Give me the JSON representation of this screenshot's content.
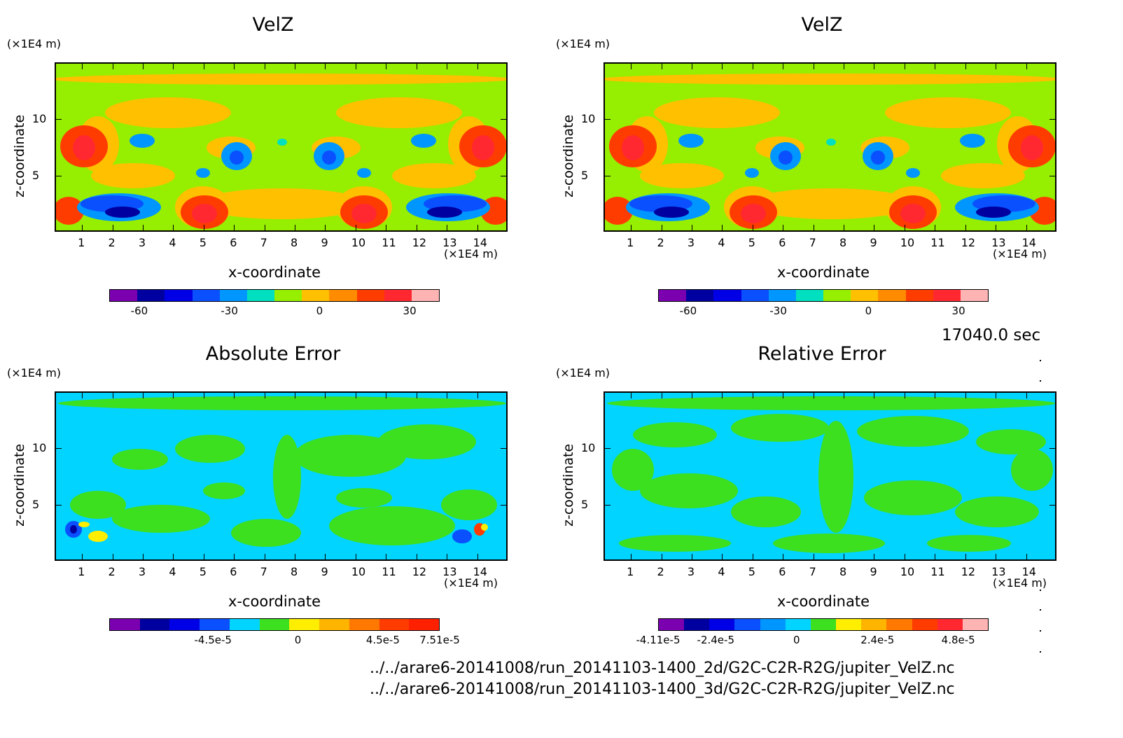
{
  "time_label": "17040.0 sec",
  "files": [
    "../../arare6-20141008/run_20141103-1400_2d/G2C-C2R-R2G/jupiter_VelZ.nc",
    "../../arare6-20141008/run_20141103-1400_3d/G2C-C2R-R2G/jupiter_VelZ.nc"
  ],
  "chart_data": [
    {
      "type": "heatmap",
      "title": "VelZ",
      "xlabel": "x-coordinate",
      "ylabel": "z-coordinate",
      "x_unit": "(×1E4 m)",
      "y_unit": "(×1E4 m)",
      "xlim": [
        0.1,
        15.0
      ],
      "ylim": [
        0.1,
        15.0
      ],
      "x_ticks": [
        1,
        2,
        3,
        4,
        5,
        6,
        7,
        8,
        9,
        10,
        11,
        12,
        13,
        14
      ],
      "y_ticks": [
        5,
        10
      ],
      "colorbar": {
        "colors": [
          "#7a00b0",
          "#0000a0",
          "#0000e6",
          "#0a50ff",
          "#0096ff",
          "#00e0c0",
          "#96ee00",
          "#ffc000",
          "#ff8c00",
          "#ff3c00",
          "#ff2830",
          "#ffb4b4"
        ],
        "tick_labels": [
          "-60",
          "-30",
          "0",
          "30"
        ],
        "tick_values": [
          -60,
          -30,
          0,
          30
        ],
        "range": [
          -70,
          40
        ]
      },
      "colors": {
        "background": "#96ee00",
        "positive": "#ffc000",
        "negative": "#0096ff"
      }
    },
    {
      "type": "heatmap",
      "title": "VelZ",
      "xlabel": "x-coordinate",
      "ylabel": "z-coordinate",
      "x_unit": "(×1E4 m)",
      "y_unit": "(×1E4 m)",
      "xlim": [
        0.1,
        15.0
      ],
      "ylim": [
        0.1,
        15.0
      ],
      "x_ticks": [
        1,
        2,
        3,
        4,
        5,
        6,
        7,
        8,
        9,
        10,
        11,
        12,
        13,
        14
      ],
      "y_ticks": [
        5,
        10
      ],
      "colorbar": {
        "colors": [
          "#7a00b0",
          "#0000a0",
          "#0000e6",
          "#0a50ff",
          "#0096ff",
          "#00e0c0",
          "#96ee00",
          "#ffc000",
          "#ff8c00",
          "#ff3c00",
          "#ff2830",
          "#ffb4b4"
        ],
        "tick_labels": [
          "-60",
          "-30",
          "0",
          "30"
        ],
        "tick_values": [
          -60,
          -30,
          0,
          30
        ],
        "range": [
          -70,
          40
        ]
      },
      "colors": {
        "background": "#96ee00",
        "positive": "#ffc000",
        "negative": "#0096ff"
      }
    },
    {
      "type": "heatmap",
      "title": "Absolute Error",
      "xlabel": "x-coordinate",
      "ylabel": "z-coordinate",
      "x_unit": "(×1E4 m)",
      "y_unit": "(×1E4 m)",
      "xlim": [
        0.1,
        15.0
      ],
      "ylim": [
        0.1,
        15.0
      ],
      "x_ticks": [
        1,
        2,
        3,
        4,
        5,
        6,
        7,
        8,
        9,
        10,
        11,
        12,
        13,
        14
      ],
      "y_ticks": [
        5,
        10
      ],
      "colorbar": {
        "colors": [
          "#7a00b0",
          "#0000a0",
          "#0000e6",
          "#0a50ff",
          "#00d4ff",
          "#3ce01e",
          "#ffee00",
          "#ffb400",
          "#ff7800",
          "#ff3c00",
          "#ff2000"
        ],
        "tick_labels": [
          "-4.5e-5",
          "0",
          "4.5e-5",
          "7.51e-5"
        ],
        "tick_values": [
          -4.5e-05,
          0,
          4.5e-05,
          7.51e-05
        ],
        "range": [
          -0.0001,
          7.51e-05
        ]
      },
      "colors": {
        "background": "#00d4ff",
        "positive": "#3ce01e",
        "negative": "#0a50ff"
      }
    },
    {
      "type": "heatmap",
      "title": "Relative Error",
      "xlabel": "x-coordinate",
      "ylabel": "z-coordinate",
      "x_unit": "(×1E4 m)",
      "y_unit": "(×1E4 m)",
      "xlim": [
        0.1,
        15.0
      ],
      "ylim": [
        0.1,
        15.0
      ],
      "x_ticks": [
        1,
        2,
        3,
        4,
        5,
        6,
        7,
        8,
        9,
        10,
        11,
        12,
        13,
        14
      ],
      "y_ticks": [
        5,
        10
      ],
      "colorbar": {
        "colors": [
          "#7a00b0",
          "#0000a0",
          "#0000e6",
          "#0a50ff",
          "#0096ff",
          "#00d4ff",
          "#3ce01e",
          "#ffee00",
          "#ffb400",
          "#ff7800",
          "#ff3c00",
          "#ff2830",
          "#ffb4b4"
        ],
        "tick_labels": [
          "-4.11e-5",
          "-2.4e-5",
          "0",
          "2.4e-5",
          "4.8e-5"
        ],
        "tick_values": [
          -4.11e-05,
          -2.4e-05,
          0,
          2.4e-05,
          4.8e-05
        ],
        "range": [
          -4.11e-05,
          5.7e-05
        ]
      },
      "colors": {
        "background": "#00d4ff",
        "positive": "#3ce01e",
        "negative": "#0a50ff"
      }
    }
  ]
}
